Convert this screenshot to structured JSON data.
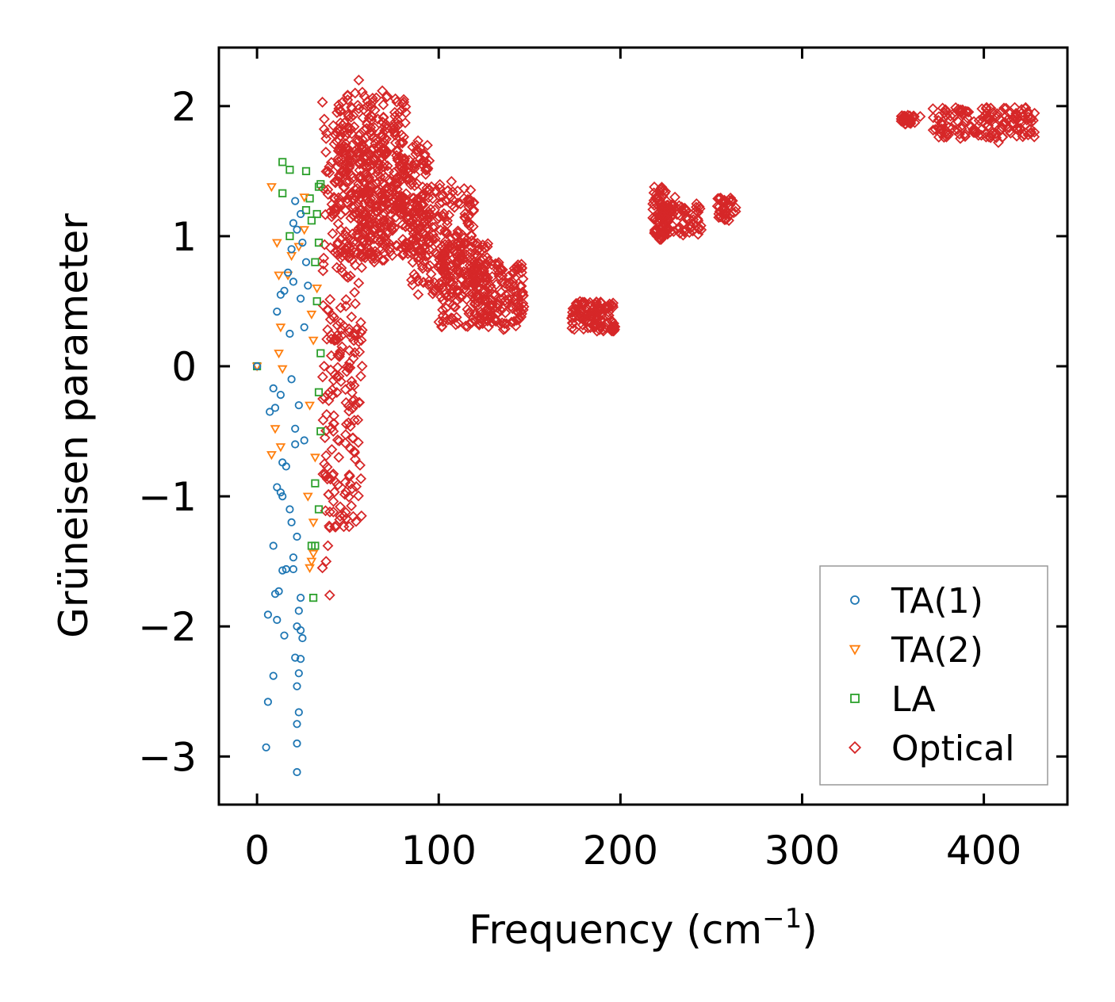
{
  "chart_data": {
    "type": "scatter",
    "title": "",
    "xlabel": "Frequency (cm",
    "xlabel_sup": "−1",
    "xlabel_suffix": ")",
    "ylabel": "Grüneisen parameter",
    "xlim": [
      -21,
      446
    ],
    "ylim": [
      -3.37,
      2.45
    ],
    "xticks": [
      0,
      100,
      200,
      300,
      400
    ],
    "xtick_labels": [
      "0",
      "100",
      "200",
      "300",
      "400"
    ],
    "yticks": [
      -3,
      -2,
      -1,
      0,
      1,
      2
    ],
    "ytick_labels": [
      "−3",
      "−2",
      "−1",
      "0",
      "1",
      "2"
    ],
    "grid": false,
    "legend_position": "lower-right",
    "series": [
      {
        "name": "TA(1)",
        "marker": "circle",
        "color": "#1f77b4",
        "points": [
          [
            0,
            0
          ],
          [
            5,
            -2.93
          ],
          [
            6,
            -2.58
          ],
          [
            9,
            -2.38
          ],
          [
            6,
            -1.91
          ],
          [
            10,
            -1.75
          ],
          [
            12,
            -1.73
          ],
          [
            11,
            -1.95
          ],
          [
            9,
            -1.38
          ],
          [
            14,
            -1.57
          ],
          [
            16,
            -1.56
          ],
          [
            15,
            -2.07
          ],
          [
            18,
            -1.1
          ],
          [
            11,
            -0.93
          ],
          [
            13,
            -0.97
          ],
          [
            14,
            -1.0
          ],
          [
            7,
            -0.35
          ],
          [
            10,
            -0.32
          ],
          [
            13,
            -0.22
          ],
          [
            9,
            -0.17
          ],
          [
            14,
            -0.74
          ],
          [
            16,
            -0.77
          ],
          [
            11,
            0.42
          ],
          [
            13,
            0.55
          ],
          [
            15,
            0.58
          ],
          [
            17,
            0.72
          ],
          [
            19,
            0.9
          ],
          [
            20,
            1.1
          ],
          [
            21,
            1.27
          ],
          [
            22,
            1.05
          ],
          [
            24,
            1.17
          ],
          [
            22,
            -3.12
          ],
          [
            22,
            -2.9
          ],
          [
            22,
            -2.75
          ],
          [
            23,
            -2.66
          ],
          [
            22,
            -2.46
          ],
          [
            23,
            -2.36
          ],
          [
            21,
            -2.24
          ],
          [
            24,
            -2.25
          ],
          [
            22,
            -2.0
          ],
          [
            24,
            -2.03
          ],
          [
            23,
            -1.88
          ],
          [
            25,
            -2.09
          ],
          [
            24,
            -1.78
          ],
          [
            20,
            -1.56
          ],
          [
            20,
            -1.47
          ],
          [
            22,
            -1.31
          ],
          [
            19,
            -1.2
          ],
          [
            21,
            -0.6
          ],
          [
            23,
            -0.3
          ],
          [
            18,
            0.25
          ],
          [
            26,
            0.3
          ],
          [
            21,
            -0.48
          ],
          [
            27,
            0.8
          ],
          [
            24,
            0.52
          ],
          [
            26,
            -0.57
          ],
          [
            19,
            -0.1
          ],
          [
            25,
            0.95
          ],
          [
            28,
            0.62
          ],
          [
            20,
            0.65
          ]
        ]
      },
      {
        "name": "TA(2)",
        "marker": "triangle-down",
        "color": "#ff7f0e",
        "points": [
          [
            0,
            0
          ],
          [
            8,
            1.38
          ],
          [
            11,
            0.95
          ],
          [
            12,
            0.7
          ],
          [
            13,
            0.3
          ],
          [
            12,
            0.1
          ],
          [
            14,
            -0.02
          ],
          [
            10,
            -0.48
          ],
          [
            8,
            -0.68
          ],
          [
            13,
            -0.62
          ],
          [
            17,
            0.7
          ],
          [
            19,
            0.85
          ],
          [
            23,
            0.92
          ],
          [
            26,
            1.05
          ],
          [
            28,
            -1.0
          ],
          [
            29,
            -1.55
          ],
          [
            30,
            -1.5
          ],
          [
            31,
            -1.44
          ],
          [
            30,
            0.4
          ],
          [
            29,
            -0.3
          ],
          [
            31,
            0.2
          ],
          [
            33,
            0.6
          ],
          [
            32,
            -0.7
          ],
          [
            31,
            -1.2
          ],
          [
            26,
            1.3
          ]
        ]
      },
      {
        "name": "LA",
        "marker": "square",
        "color": "#2ca02c",
        "points": [
          [
            0,
            0
          ],
          [
            14,
            1.57
          ],
          [
            18,
            1.51
          ],
          [
            14,
            1.33
          ],
          [
            27,
            1.5
          ],
          [
            27,
            1.2
          ],
          [
            29,
            1.29
          ],
          [
            30,
            1.12
          ],
          [
            33,
            1.17
          ],
          [
            34,
            1.38
          ],
          [
            35,
            1.4
          ],
          [
            34,
            0.95
          ],
          [
            32,
            0.8
          ],
          [
            33,
            0.5
          ],
          [
            30,
            -1.38
          ],
          [
            32,
            -1.38
          ],
          [
            31,
            -1.78
          ],
          [
            34,
            -1.1
          ],
          [
            32,
            -0.9
          ],
          [
            35,
            -0.5
          ],
          [
            35,
            0.1
          ],
          [
            18,
            1.0
          ],
          [
            34,
            -0.2
          ]
        ]
      },
      {
        "name": "Optical",
        "marker": "diamond",
        "color": "#d62728",
        "points": [
          [
            56,
            2.2
          ],
          [
            54,
            2.1
          ],
          [
            47,
            2.03
          ],
          [
            36,
            2.03
          ],
          [
            45,
            1.98
          ],
          [
            37,
            1.9
          ],
          [
            38,
            1.75
          ],
          [
            44,
            1.95
          ],
          [
            42,
            1.85
          ],
          [
            40,
            -1.76
          ],
          [
            36,
            -1.55
          ],
          [
            38,
            -1.5
          ],
          [
            39,
            -1.38
          ],
          [
            40,
            -1.24
          ],
          [
            42,
            -1.12
          ],
          [
            45,
            -0.7
          ],
          [
            42,
            -0.5
          ],
          [
            40,
            -0.2
          ],
          [
            43,
            0.2
          ],
          [
            46,
            0.45
          ],
          [
            63,
            1.78
          ],
          [
            70,
            1.72
          ],
          [
            75,
            1.82
          ],
          [
            96,
            1.38
          ],
          [
            107,
            1.42
          ],
          [
            110,
            1.0
          ],
          [
            365,
            1.92
          ],
          [
            372,
            1.98
          ],
          [
            390,
            1.96
          ],
          [
            402,
            1.9
          ],
          [
            412,
            1.87
          ],
          [
            420,
            1.83
          ],
          [
            426,
            1.8
          ],
          [
            408,
            1.72
          ],
          [
            405,
            1.95
          ],
          [
            395,
            1.82
          ],
          [
            230,
            1.3
          ]
        ]
      }
    ],
    "optical_clusters": [
      {
        "x": [
          36,
          58
        ],
        "y": [
          -1.25,
          1.85
        ],
        "n": 260
      },
      {
        "x": [
          44,
          72
        ],
        "y": [
          0.8,
          2.12
        ],
        "n": 240
      },
      {
        "x": [
          55,
          95
        ],
        "y": [
          0.85,
          1.75
        ],
        "n": 260
      },
      {
        "x": [
          75,
          82
        ],
        "y": [
          1.2,
          2.06
        ],
        "n": 60
      },
      {
        "x": [
          85,
          120
        ],
        "y": [
          0.55,
          1.4
        ],
        "n": 200
      },
      {
        "x": [
          100,
          128
        ],
        "y": [
          0.3,
          0.95
        ],
        "n": 160
      },
      {
        "x": [
          118,
          147
        ],
        "y": [
          0.28,
          0.8
        ],
        "n": 140
      },
      {
        "x": [
          173,
          197
        ],
        "y": [
          0.27,
          0.5
        ],
        "n": 120
      },
      {
        "x": [
          217,
          226
        ],
        "y": [
          0.97,
          1.38
        ],
        "n": 60
      },
      {
        "x": [
          222,
          245
        ],
        "y": [
          1.0,
          1.25
        ],
        "n": 80
      },
      {
        "x": [
          253,
          264
        ],
        "y": [
          1.12,
          1.3
        ],
        "n": 40
      },
      {
        "x": [
          354,
          362
        ],
        "y": [
          1.86,
          1.93
        ],
        "n": 30
      },
      {
        "x": [
          372,
          428
        ],
        "y": [
          1.75,
          1.99
        ],
        "n": 150
      }
    ]
  }
}
